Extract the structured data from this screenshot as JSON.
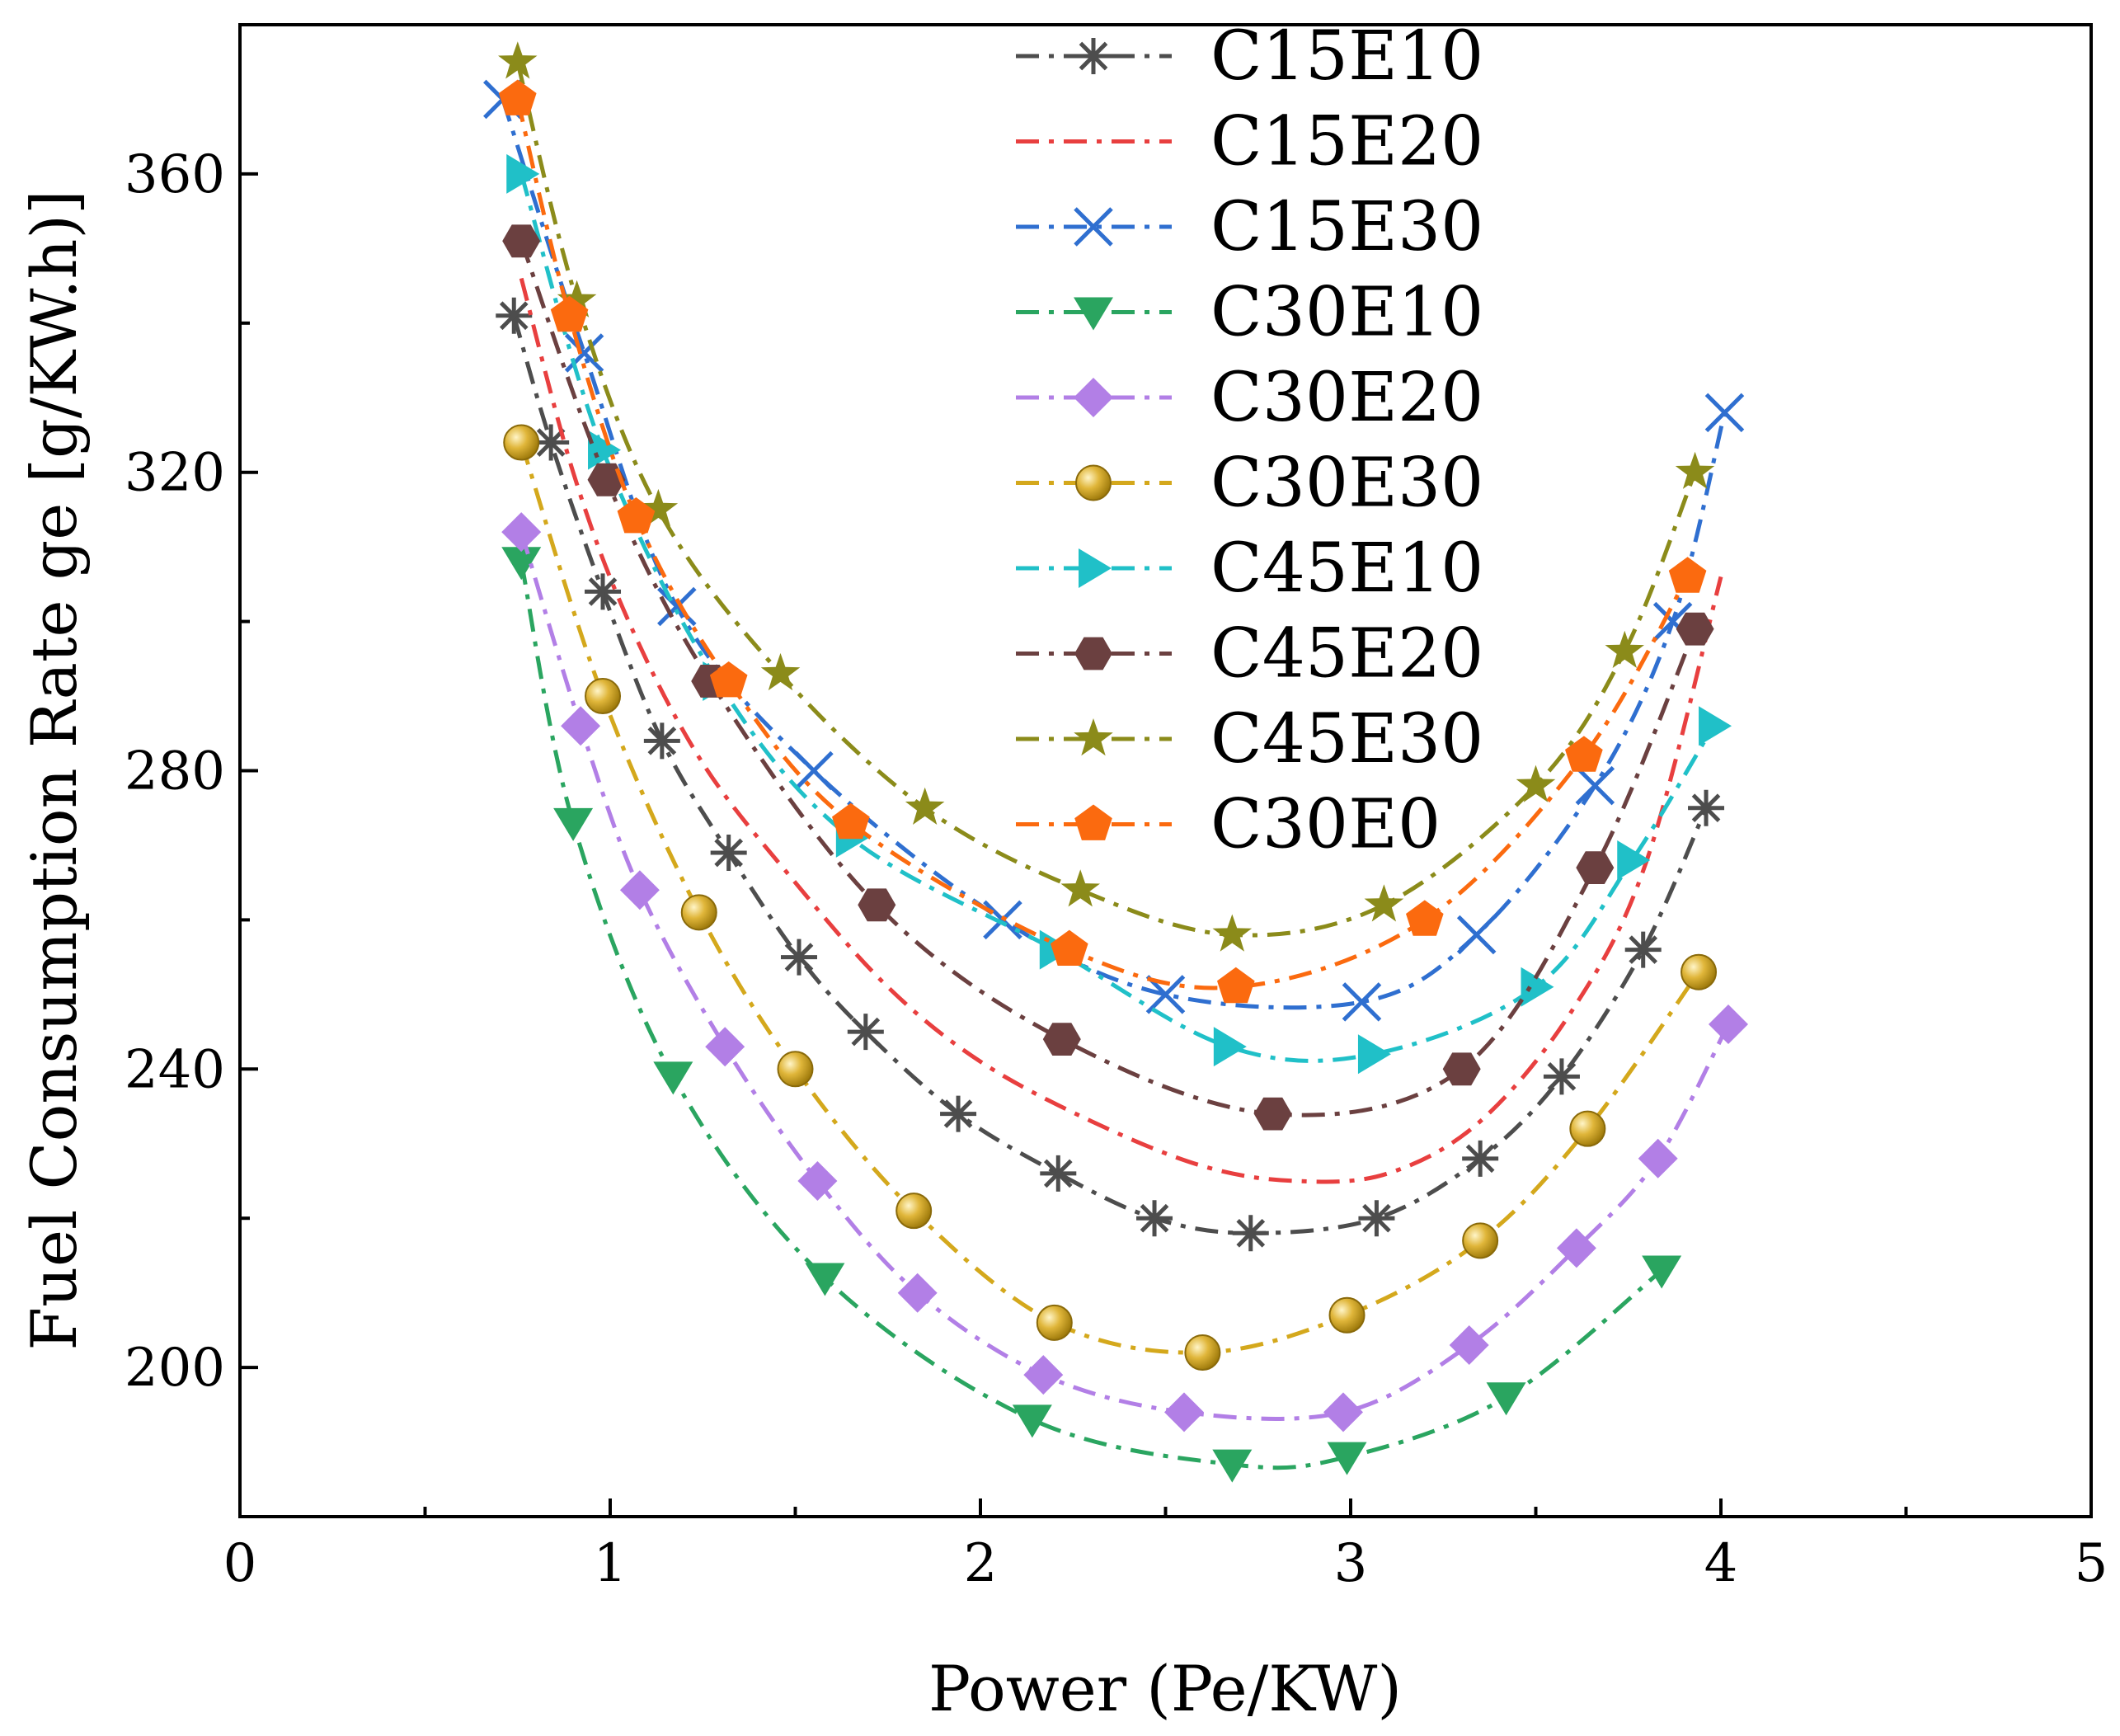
{
  "chart_data": {
    "type": "line",
    "title": "",
    "xlabel": "Power (Pe/KW)",
    "ylabel": "Fuel Consumption Rate ge [g/KW.h)]",
    "xlim": [
      0,
      5
    ],
    "ylim": [
      180,
      380
    ],
    "xticks": [
      0,
      1,
      2,
      3,
      4,
      5
    ],
    "yticks": [
      200,
      240,
      280,
      320,
      360
    ],
    "grid": false,
    "legend_position": "top-center",
    "series": [
      {
        "name": "C15E10",
        "color": "#4d4d4d",
        "marker": "asterisk",
        "x": [
          0.74,
          0.84,
          0.98,
          1.14,
          1.32,
          1.51,
          1.69,
          1.94,
          2.21,
          2.47,
          2.73,
          3.07,
          3.35,
          3.57,
          3.79,
          3.96
        ],
        "y": [
          341,
          324,
          304,
          284,
          269,
          255,
          245,
          234,
          226,
          220,
          218,
          220,
          228,
          239,
          256,
          275
        ]
      },
      {
        "name": "C15E20",
        "color": "#e83f3f",
        "marker": "none",
        "x": [
          0.76,
          0.9,
          1.05,
          1.25,
          1.5,
          1.75,
          2.0,
          2.3,
          2.6,
          2.85,
          3.1,
          3.35,
          3.6,
          3.8,
          4.0
        ],
        "y": [
          346,
          320,
          300,
          281,
          265,
          251,
          241,
          233,
          227,
          225,
          226,
          233,
          248,
          268,
          306
        ]
      },
      {
        "name": "C15E30",
        "color": "#2f6fd0",
        "marker": "x",
        "x": [
          0.71,
          0.93,
          1.18,
          1.55,
          2.06,
          2.5,
          3.03,
          3.34,
          3.66,
          3.87,
          4.01
        ],
        "y": [
          370,
          336,
          302,
          280,
          260,
          250,
          249,
          258,
          278,
          300,
          328
        ]
      },
      {
        "name": "C30E10",
        "color": "#2aa560",
        "marker": "triangle-down",
        "x": [
          0.76,
          0.9,
          1.17,
          1.58,
          2.14,
          2.68,
          2.99,
          3.42,
          3.84
        ],
        "y": [
          308,
          273,
          239,
          212,
          193,
          187,
          188,
          196,
          213
        ]
      },
      {
        "name": "C30E20",
        "color": "#b27fe6",
        "marker": "diamond",
        "x": [
          0.76,
          0.92,
          1.08,
          1.31,
          1.56,
          1.83,
          2.17,
          2.55,
          2.98,
          3.32,
          3.61,
          3.83,
          4.02
        ],
        "y": [
          312,
          286,
          264,
          243,
          225,
          210,
          199,
          194,
          194,
          203,
          216,
          228,
          246
        ]
      },
      {
        "name": "C30E30",
        "color": "#d4a81c",
        "marker": "sphere",
        "x": [
          0.76,
          0.98,
          1.24,
          1.5,
          1.82,
          2.2,
          2.6,
          2.99,
          3.35,
          3.64,
          3.94
        ],
        "y": [
          324,
          290,
          261,
          240,
          221,
          206,
          202,
          207,
          217,
          232,
          253
        ]
      },
      {
        "name": "C45E10",
        "color": "#20c0c8",
        "marker": "triangle-right",
        "x": [
          0.76,
          0.98,
          1.29,
          1.65,
          2.2,
          2.67,
          3.06,
          3.5,
          3.76,
          3.98
        ],
        "y": [
          360,
          323,
          292,
          271,
          256,
          243,
          242,
          251,
          268,
          286
        ]
      },
      {
        "name": "C45E20",
        "color": "#6b4040",
        "marker": "hexagon",
        "x": [
          0.76,
          0.99,
          1.27,
          1.72,
          2.22,
          2.79,
          3.3,
          3.66,
          3.93
        ],
        "y": [
          351,
          319,
          292,
          262,
          244,
          234,
          240,
          267,
          299
        ]
      },
      {
        "name": "C45E30",
        "color": "#8b8b1a",
        "marker": "star",
        "x": [
          0.75,
          0.91,
          1.13,
          1.46,
          1.85,
          2.27,
          2.68,
          3.09,
          3.5,
          3.74,
          3.93
        ],
        "y": [
          375,
          343,
          315,
          293,
          275,
          264,
          258,
          262,
          278,
          296,
          320
        ]
      },
      {
        "name": "C30E0",
        "color": "#fb6a0f",
        "marker": "pentagon",
        "x": [
          0.75,
          0.89,
          1.07,
          1.32,
          1.65,
          2.24,
          2.69,
          3.2,
          3.63,
          3.91
        ],
        "y": [
          370,
          341,
          314,
          292,
          273,
          256,
          251,
          260,
          282,
          306
        ]
      }
    ]
  }
}
